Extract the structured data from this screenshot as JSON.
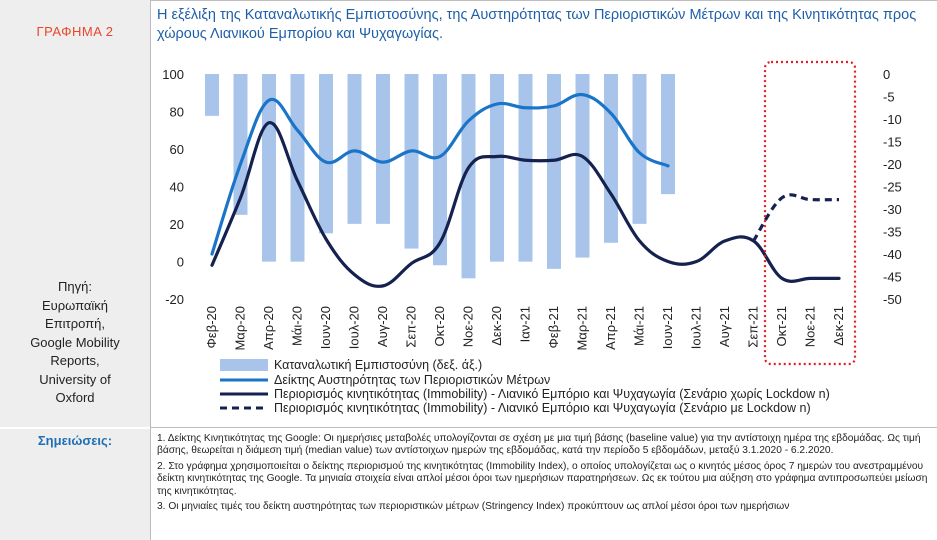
{
  "figure_label": "ΓΡΑΦΗΜΑ 2",
  "title": "Η εξέλιξη της Καταναλωτικής Εμπιστοσύνης, της Αυστηρότητας των Περιοριστικών Μέτρων και της Κινητικότητας προς χώρους Λιανικού Εμπορίου και Ψυχαγωγίας.",
  "source": "Πηγή:\nΕυρωπαϊκή\nΕπιτροπή,\nGoogle Mobility\nReports,\nUniversity of\nOxford",
  "notes_label": "Σημειώσεις:",
  "notes": [
    "1. Δείκτης Κινητικότητας της Google: Οι ημερήσιες μεταβολές υπολογίζονται σε σχέση με μια τιμή βάσης (baseline value) για την αντίστοιχη ημέρα της εβδομάδας. Ως τιμή βάσης, θεωρείται η διάμεση τιμή (median value) των αντίστοιχων ημερών της εβδομάδας, κατά την περίοδο 5 εβδομάδων, μεταξύ 3.1.2020 - 6.2.2020.",
    "2. Στο γράφημα χρησιμοποιείται ο δείκτης περιορισμού της κινητικότητας (Immobility Index), ο οποίος υπολογίζεται ως ο κινητός μέσος όρος 7 ημερών του ανεστραμμένου δείκτη κινητικότητας της Google. Τα μηνιαία στοιχεία είναι απλοί μέσοι όροι των ημερήσιων παρατηρήσεων. Ως εκ τούτου μια αύξηση στο γράφημα αντιπροσωπεύει μείωση της κινητικότητας.",
    "3. Οι μηνιαίες τιμές του δείκτη αυστηρότητας των περιοριστικών μέτρων (Stringency Index) προκύπτουν ως απλοί μέσοι όροι των ημερήσιων"
  ],
  "chart_data": {
    "type": "bar",
    "categories": [
      "Φεβ-20",
      "Μαρ-20",
      "Απρ-20",
      "Μάι-20",
      "Ιουν-20",
      "Ιουλ-20",
      "Αυγ-20",
      "Σεπ-20",
      "Οκτ-20",
      "Νοε-20",
      "Δεκ-20",
      "Ιαν-21",
      "Φεβ-21",
      "Μαρ-21",
      "Απρ-21",
      "Μάι-21",
      "Ιουν-21",
      "Ιουλ-21",
      "Αυγ-21",
      "Σεπ-21",
      "Οκτ-21",
      "Νοε-21",
      "Δεκ-21"
    ],
    "y_left": {
      "min": -20,
      "max": 100,
      "ticks": [
        100,
        80,
        60,
        40,
        20,
        0,
        -20
      ]
    },
    "y_right": {
      "min": -50,
      "max": 0,
      "ticks": [
        0,
        -5,
        -10,
        -15,
        -20,
        -25,
        -30,
        -35,
        -40,
        -45,
        -50
      ]
    },
    "series": [
      {
        "name": "Καταναλωτική Εμπιστοσύνη (δεξ. άξ.)",
        "type": "bar",
        "axis": "right",
        "color": "#a9c4eb",
        "values": [
          -9.3,
          -31.3,
          -41.7,
          -41.7,
          -35.4,
          -33.3,
          -33.3,
          -38.8,
          -42.5,
          -45.4,
          -41.7,
          -41.7,
          -43.3,
          -40.8,
          -37.5,
          -33.3,
          -26.7,
          null,
          null,
          null,
          null,
          null,
          null
        ]
      },
      {
        "name": "Δείκτης Αυστηρότητας των Περιοριστικών Μέτρων",
        "type": "line",
        "axis": "left",
        "color": "#1a75c8",
        "values": [
          4,
          52,
          86,
          70,
          53,
          59,
          53,
          59,
          56,
          75,
          84,
          82,
          83,
          89,
          79,
          58,
          51,
          null,
          null,
          null,
          null,
          null,
          null
        ]
      },
      {
        "name": "Περιορισμός κινητικότητας (Immobility) - Λιανικό Εμπόριο και Ψυχαγωγία (Σενάριο χωρίς Lockdow n)",
        "type": "line",
        "axis": "left",
        "color": "#15214f",
        "values": [
          -2,
          34,
          74,
          43,
          12,
          -7,
          -13,
          -1,
          10,
          50,
          56,
          54,
          54,
          56,
          36,
          11,
          0,
          0,
          11,
          11,
          -9,
          -9,
          -9
        ]
      },
      {
        "name": "Περιορισμός κινητικότητας (Immobility) - Λιανικό Εμπόριο και Ψυχαγωγία (Σενάριο με Lockdow n)",
        "type": "line",
        "dashed": true,
        "axis": "left",
        "color": "#15214f",
        "values": [
          null,
          null,
          null,
          null,
          null,
          null,
          null,
          null,
          null,
          null,
          null,
          null,
          null,
          null,
          null,
          null,
          null,
          null,
          null,
          11,
          34,
          33,
          33
        ]
      }
    ],
    "highlight": {
      "from": "Οκτ-21",
      "to": "Δεκ-21",
      "color": "#e02020"
    },
    "legend_position": "bottom"
  }
}
